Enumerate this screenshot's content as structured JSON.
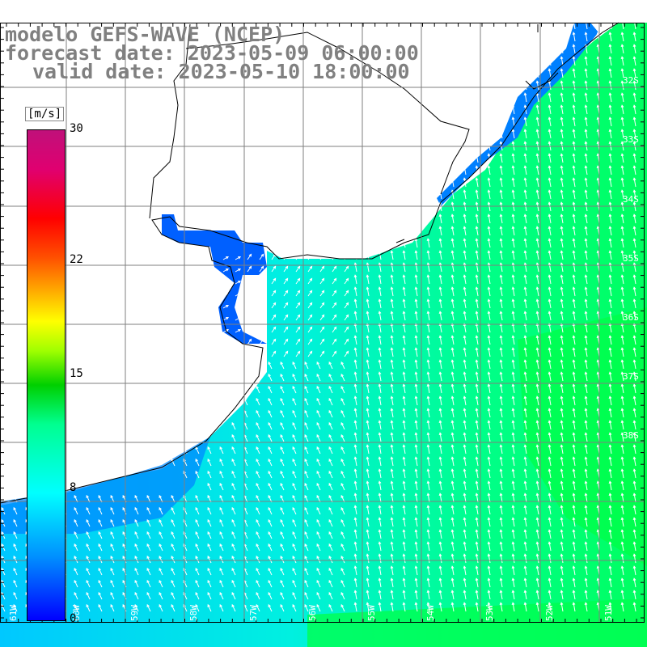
{
  "header": {
    "model": "modelo GEFS-WAVE (NCEP)",
    "forecast": "forecast date: 2023-05-09 06:00:00",
    "valid": "valid date: 2023-05-10 18:00:00"
  },
  "colorbar": {
    "unit": "[m/s]",
    "ticks": [
      {
        "value": 30,
        "label": "30"
      },
      {
        "value": 22,
        "label": "22"
      },
      {
        "value": 15,
        "label": "15"
      },
      {
        "value": 8,
        "label": "8"
      },
      {
        "value": 0,
        "label": "0"
      }
    ],
    "min": 0,
    "max": 30
  },
  "lat_labels": [
    "32S",
    "33S",
    "34S",
    "35S",
    "36S",
    "37S",
    "38S"
  ],
  "lon_labels": [
    "61W",
    "60W",
    "59W",
    "58W",
    "57W",
    "56W",
    "55W",
    "54W",
    "53W",
    "52W",
    "51W"
  ],
  "colors": {
    "blue": "#0064ff",
    "cyan": "#00e0ff",
    "green": "#00ff70",
    "land_line": "#000000"
  }
}
